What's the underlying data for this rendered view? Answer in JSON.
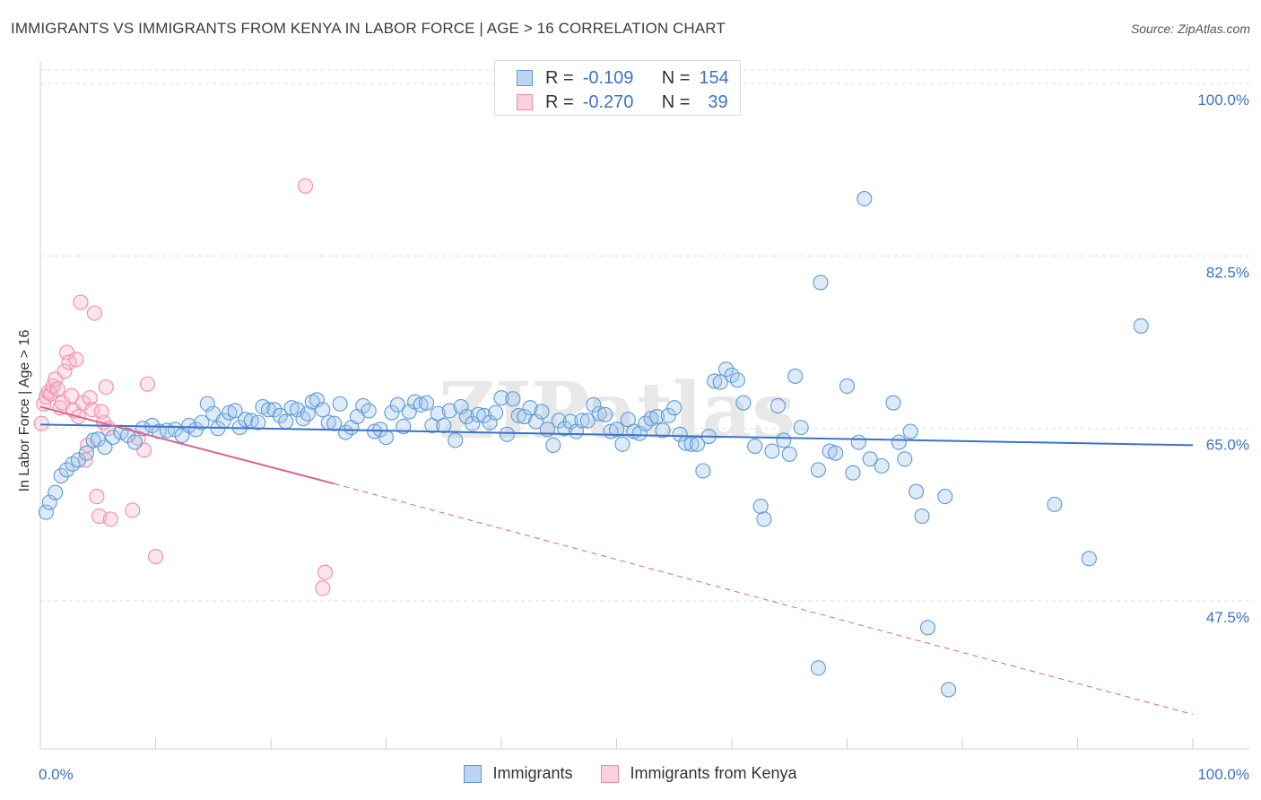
{
  "title": "IMMIGRANTS VS IMMIGRANTS FROM KENYA IN LABOR FORCE | AGE > 16 CORRELATION CHART",
  "source": "Source: ZipAtlas.com",
  "watermark": "ZIPatlas",
  "legend": {
    "r_label": "R =",
    "n_label": "N =",
    "rows": [
      {
        "r": "-0.109",
        "n": "154",
        "color": "#5b9bd5"
      },
      {
        "r": "-0.270",
        "n": "39",
        "color": "#f08cab"
      }
    ]
  },
  "chart_data": {
    "type": "scatter",
    "xlabel": "",
    "ylabel": "In Labor Force | Age > 16",
    "xlim": [
      0,
      100
    ],
    "ylim": [
      32.5,
      103
    ],
    "x_tick_labels": [
      "0.0%",
      "100.0%"
    ],
    "y_ticks": [
      47.5,
      65.0,
      82.5,
      100.0
    ],
    "y_tick_labels": [
      "47.5%",
      "65.0%",
      "82.5%",
      "100.0%"
    ],
    "grid": true,
    "colors": {
      "blue": "#5b9bd5",
      "blue_line": "#3b73c9",
      "pink": "#f08cab",
      "pink_line": "#e0608a",
      "tick_label": "#3b73c9"
    },
    "series": [
      {
        "name": "Immigrants",
        "color": "#5b9bd5",
        "trend": {
          "x0": 0,
          "y0": 65.4,
          "x1": 100,
          "y1": 63.3
        },
        "points": [
          [
            0.5,
            56.5
          ],
          [
            0.8,
            57.5
          ],
          [
            1.3,
            58.5
          ],
          [
            1.8,
            60.2
          ],
          [
            2.3,
            60.8
          ],
          [
            2.8,
            61.4
          ],
          [
            3.3,
            61.8
          ],
          [
            4.0,
            62.5
          ],
          [
            4.6,
            63.8
          ],
          [
            5.0,
            63.9
          ],
          [
            5.6,
            63.1
          ],
          [
            6.3,
            64.1
          ],
          [
            7.0,
            64.6
          ],
          [
            7.6,
            64.3
          ],
          [
            8.2,
            63.6
          ],
          [
            8.9,
            65.0
          ],
          [
            9.7,
            65.3
          ],
          [
            10.3,
            64.7
          ],
          [
            11.0,
            64.8
          ],
          [
            11.7,
            64.9
          ],
          [
            12.3,
            64.3
          ],
          [
            12.9,
            65.3
          ],
          [
            13.5,
            64.9
          ],
          [
            14.0,
            65.6
          ],
          [
            14.5,
            67.5
          ],
          [
            15.0,
            66.5
          ],
          [
            15.4,
            65.0
          ],
          [
            15.9,
            65.8
          ],
          [
            16.4,
            66.6
          ],
          [
            16.9,
            66.8
          ],
          [
            17.3,
            65.1
          ],
          [
            17.8,
            65.9
          ],
          [
            18.3,
            65.8
          ],
          [
            18.9,
            65.6
          ],
          [
            19.3,
            67.2
          ],
          [
            19.8,
            66.9
          ],
          [
            20.3,
            66.9
          ],
          [
            20.8,
            66.3
          ],
          [
            21.3,
            65.7
          ],
          [
            21.8,
            67.1
          ],
          [
            22.3,
            66.9
          ],
          [
            22.8,
            66.0
          ],
          [
            23.2,
            66.5
          ],
          [
            23.6,
            67.7
          ],
          [
            24.0,
            67.9
          ],
          [
            24.5,
            66.9
          ],
          [
            25.0,
            65.6
          ],
          [
            25.5,
            65.5
          ],
          [
            26.0,
            67.5
          ],
          [
            26.5,
            64.6
          ],
          [
            27.0,
            65.1
          ],
          [
            27.5,
            66.2
          ],
          [
            28.0,
            67.3
          ],
          [
            28.5,
            66.8
          ],
          [
            29.0,
            64.7
          ],
          [
            29.5,
            64.9
          ],
          [
            30.0,
            64.1
          ],
          [
            30.5,
            66.6
          ],
          [
            31.0,
            67.4
          ],
          [
            31.5,
            65.2
          ],
          [
            32.0,
            66.7
          ],
          [
            32.5,
            67.7
          ],
          [
            33.0,
            67.4
          ],
          [
            33.5,
            67.6
          ],
          [
            34.0,
            65.3
          ],
          [
            34.5,
            66.5
          ],
          [
            35.0,
            65.3
          ],
          [
            35.5,
            66.8
          ],
          [
            36.0,
            63.8
          ],
          [
            36.5,
            67.2
          ],
          [
            37.0,
            66.2
          ],
          [
            37.5,
            65.5
          ],
          [
            38.0,
            66.4
          ],
          [
            38.5,
            66.3
          ],
          [
            39.0,
            65.6
          ],
          [
            39.5,
            66.6
          ],
          [
            40.0,
            68.1
          ],
          [
            40.5,
            64.4
          ],
          [
            41.0,
            68.0
          ],
          [
            41.5,
            66.3
          ],
          [
            42.0,
            66.2
          ],
          [
            42.5,
            67.1
          ],
          [
            43.0,
            65.7
          ],
          [
            43.5,
            66.7
          ],
          [
            44.0,
            64.9
          ],
          [
            44.5,
            63.3
          ],
          [
            45.0,
            65.8
          ],
          [
            45.5,
            65.0
          ],
          [
            46.0,
            65.7
          ],
          [
            46.5,
            64.7
          ],
          [
            47.0,
            65.8
          ],
          [
            47.5,
            65.8
          ],
          [
            48.0,
            67.4
          ],
          [
            48.5,
            66.5
          ],
          [
            49.0,
            66.4
          ],
          [
            49.5,
            64.7
          ],
          [
            50.0,
            64.9
          ],
          [
            50.5,
            63.4
          ],
          [
            51.0,
            65.9
          ],
          [
            51.5,
            64.7
          ],
          [
            52.0,
            64.5
          ],
          [
            52.5,
            65.5
          ],
          [
            53.0,
            66.0
          ],
          [
            53.5,
            66.2
          ],
          [
            54.0,
            64.8
          ],
          [
            54.5,
            66.3
          ],
          [
            55.0,
            67.1
          ],
          [
            55.5,
            64.4
          ],
          [
            56.0,
            63.5
          ],
          [
            56.5,
            63.4
          ],
          [
            57.0,
            63.4
          ],
          [
            57.5,
            60.7
          ],
          [
            58.0,
            64.2
          ],
          [
            58.5,
            69.8
          ],
          [
            59.0,
            69.7
          ],
          [
            59.5,
            71.0
          ],
          [
            60.0,
            70.4
          ],
          [
            60.5,
            69.9
          ],
          [
            61.0,
            67.6
          ],
          [
            62.0,
            63.2
          ],
          [
            62.5,
            57.1
          ],
          [
            62.8,
            55.8
          ],
          [
            63.5,
            62.7
          ],
          [
            64.0,
            67.3
          ],
          [
            64.5,
            63.8
          ],
          [
            65.0,
            62.4
          ],
          [
            65.5,
            70.3
          ],
          [
            66.0,
            65.1
          ],
          [
            67.5,
            60.8
          ],
          [
            68.5,
            62.7
          ],
          [
            69.0,
            62.5
          ],
          [
            70.0,
            69.3
          ],
          [
            70.5,
            60.5
          ],
          [
            71.0,
            63.6
          ],
          [
            72.0,
            61.9
          ],
          [
            73.0,
            61.2
          ],
          [
            74.0,
            67.6
          ],
          [
            74.5,
            63.6
          ],
          [
            75.0,
            61.9
          ],
          [
            75.5,
            64.7
          ],
          [
            76.0,
            58.6
          ],
          [
            76.5,
            56.1
          ],
          [
            78.5,
            58.1
          ],
          [
            88.0,
            57.3
          ],
          [
            91.0,
            51.8
          ],
          [
            95.5,
            75.4
          ],
          [
            71.5,
            88.3
          ],
          [
            67.7,
            79.8
          ],
          [
            67.5,
            40.7
          ],
          [
            77.0,
            44.8
          ],
          [
            78.8,
            38.5
          ]
        ]
      },
      {
        "name": "Immigrants from Kenya",
        "color": "#f08cab",
        "trend": {
          "x0": 0,
          "y0": 67.2,
          "x1": 25.5,
          "y1": 59.4,
          "dash_x1": 100,
          "dash_y1": 36.0
        },
        "points": [
          [
            0.1,
            65.5
          ],
          [
            0.3,
            67.5
          ],
          [
            0.5,
            68.2
          ],
          [
            0.7,
            68.7
          ],
          [
            0.9,
            68.5
          ],
          [
            1.1,
            69.3
          ],
          [
            1.3,
            70.0
          ],
          [
            1.5,
            69.0
          ],
          [
            1.7,
            67.1
          ],
          [
            1.9,
            67.6
          ],
          [
            2.1,
            70.8
          ],
          [
            2.3,
            72.7
          ],
          [
            2.5,
            71.7
          ],
          [
            2.7,
            68.3
          ],
          [
            2.9,
            66.8
          ],
          [
            3.1,
            72.0
          ],
          [
            3.3,
            66.2
          ],
          [
            3.5,
            77.8
          ],
          [
            3.7,
            67.6
          ],
          [
            3.9,
            61.8
          ],
          [
            4.1,
            63.3
          ],
          [
            4.3,
            68.1
          ],
          [
            4.5,
            66.9
          ],
          [
            4.7,
            76.7
          ],
          [
            4.9,
            58.1
          ],
          [
            5.1,
            56.1
          ],
          [
            5.3,
            66.7
          ],
          [
            5.5,
            65.6
          ],
          [
            5.7,
            69.2
          ],
          [
            5.9,
            65.0
          ],
          [
            6.1,
            55.8
          ],
          [
            8.0,
            56.7
          ],
          [
            8.5,
            64.0
          ],
          [
            9.0,
            62.8
          ],
          [
            9.3,
            69.5
          ],
          [
            10.0,
            52.0
          ],
          [
            23.0,
            89.6
          ],
          [
            24.5,
            48.8
          ],
          [
            24.7,
            50.4
          ]
        ]
      }
    ]
  },
  "bottom_legend": [
    "Immigrants",
    "Immigrants from Kenya"
  ]
}
